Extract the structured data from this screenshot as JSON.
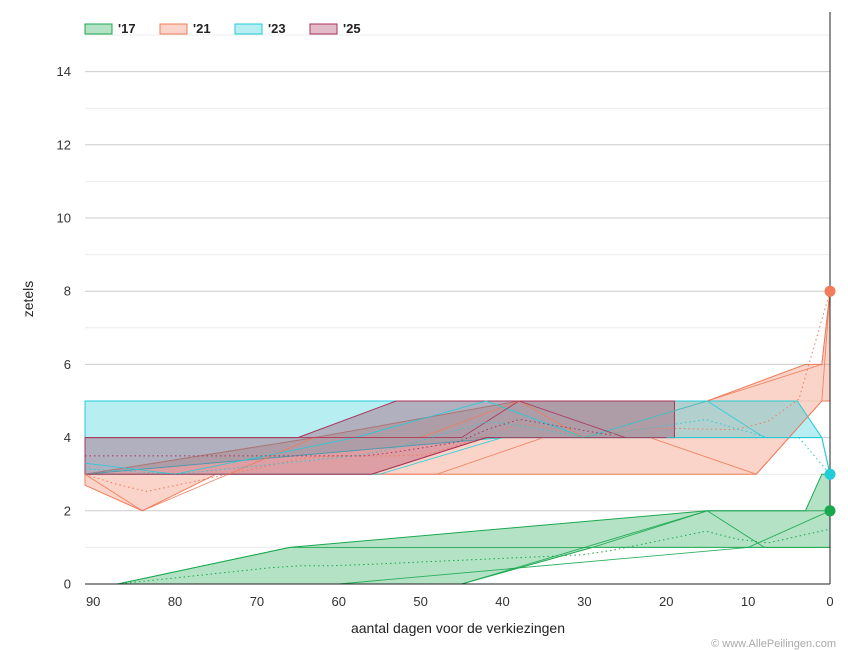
{
  "chart_data": {
    "type": "area",
    "xlabel": "aantal dagen voor de verkiezingen",
    "ylabel": "zetels",
    "xlim": [
      91,
      0
    ],
    "ylim": [
      0,
      15
    ],
    "x_ticks": [
      90,
      80,
      70,
      60,
      50,
      40,
      30,
      20,
      10,
      0
    ],
    "y_ticks": [
      0,
      2,
      4,
      6,
      8,
      10,
      12,
      14
    ],
    "grid": true,
    "legend_position": "top-left",
    "credit": "© www.AllePeilingen.com",
    "series": [
      {
        "name": "'17",
        "color": "#1aa84f",
        "band_upper": [
          [
            91,
            0
          ],
          [
            87,
            0
          ],
          [
            66,
            1
          ],
          [
            15,
            2
          ],
          [
            3,
            2
          ],
          [
            1,
            3
          ],
          [
            0,
            3
          ]
        ],
        "band_lower": [
          [
            91,
            0
          ],
          [
            45,
            0
          ],
          [
            29,
            1
          ],
          [
            8,
            1
          ],
          [
            1,
            1
          ],
          [
            0,
            1
          ]
        ],
        "traces": [
          [
            [
              91,
              0
            ],
            [
              87,
              0
            ],
            [
              66,
              1
            ],
            [
              29,
              1
            ],
            [
              15,
              2
            ],
            [
              8,
              1
            ],
            [
              1,
              1
            ],
            [
              0,
              1
            ]
          ],
          [
            [
              91,
              0
            ],
            [
              45,
              0
            ],
            [
              30,
              1
            ],
            [
              15,
              2
            ],
            [
              3,
              2
            ],
            [
              0,
              2
            ]
          ],
          [
            [
              91,
              0
            ],
            [
              60,
              0
            ],
            [
              10,
              1
            ],
            [
              0,
              2
            ]
          ]
        ],
        "result": 2
      },
      {
        "name": "'21",
        "color": "#f07c5a",
        "band_upper": [
          [
            91,
            3
          ],
          [
            63,
            4
          ],
          [
            38,
            5
          ],
          [
            15,
            5
          ],
          [
            3,
            6
          ],
          [
            1,
            6
          ],
          [
            0,
            8
          ]
        ],
        "band_lower": [
          [
            91,
            2.7
          ],
          [
            84,
            2
          ],
          [
            75,
            3
          ],
          [
            50,
            3
          ],
          [
            30,
            3
          ],
          [
            9,
            3
          ],
          [
            5,
            4
          ],
          [
            1,
            5
          ],
          [
            0,
            5
          ]
        ],
        "traces": [
          [
            [
              91,
              3
            ],
            [
              84,
              2
            ],
            [
              63,
              4
            ],
            [
              50,
              4
            ],
            [
              38,
              5
            ],
            [
              30,
              4
            ],
            [
              15,
              5
            ],
            [
              1,
              6
            ],
            [
              0,
              8
            ]
          ],
          [
            [
              91,
              3
            ],
            [
              70,
              3
            ],
            [
              48,
              3
            ],
            [
              35,
              4
            ],
            [
              22,
              4
            ],
            [
              9,
              3
            ],
            [
              1,
              5
            ],
            [
              0,
              8
            ]
          ]
        ],
        "result": 8
      },
      {
        "name": "'23",
        "color": "#22ccd8",
        "band_upper": [
          [
            91,
            5
          ],
          [
            4,
            5
          ],
          [
            1,
            4
          ],
          [
            0,
            3
          ]
        ],
        "band_lower": [
          [
            91,
            3
          ],
          [
            40,
            4
          ],
          [
            1,
            4
          ],
          [
            0,
            3
          ]
        ],
        "traces": [
          [
            [
              91,
              3.3
            ],
            [
              80,
              3
            ],
            [
              58,
              4
            ],
            [
              42,
              5
            ],
            [
              30,
              4
            ],
            [
              15,
              5
            ],
            [
              8,
              4
            ],
            [
              1,
              4
            ],
            [
              0,
              3
            ]
          ],
          [
            [
              91,
              3
            ],
            [
              55,
              3
            ],
            [
              40,
              4
            ],
            [
              1,
              4
            ],
            [
              0,
              3
            ]
          ]
        ],
        "result": 3
      },
      {
        "name": "'25",
        "color": "#a83458",
        "band_upper": [
          [
            91,
            4
          ],
          [
            65,
            4
          ],
          [
            53,
            5
          ],
          [
            19,
            5
          ]
        ],
        "band_lower": [
          [
            91,
            3
          ],
          [
            56,
            3
          ],
          [
            42,
            4
          ],
          [
            19,
            4
          ]
        ],
        "traces": [
          [
            [
              91,
              4
            ],
            [
              62,
              4
            ],
            [
              45,
              4
            ],
            [
              38,
              5
            ],
            [
              25,
              4
            ]
          ],
          [
            [
              91,
              3
            ],
            [
              56,
              3
            ],
            [
              42,
              4
            ],
            [
              20,
              4
            ]
          ]
        ]
      }
    ]
  }
}
